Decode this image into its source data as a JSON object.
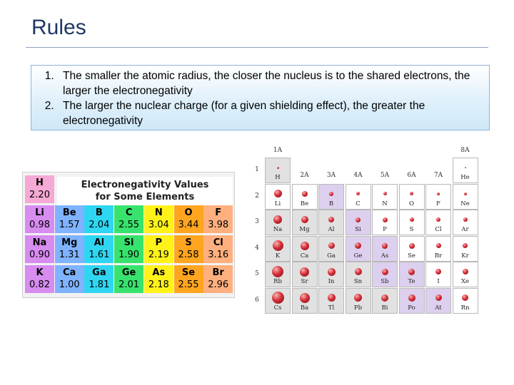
{
  "slide": {
    "title": "Rules",
    "rules": [
      "The smaller the atomic radius, the closer the nucleus is to the shared electrons, the larger the electronegativity",
      "The larger the nuclear charge (for a given shielding effect), the greater the electronegativity"
    ]
  },
  "en_table": {
    "title_line1": "Electronegativity Values",
    "title_line2": "for Some Elements",
    "colors": {
      "s_block_1": "#f29ac8",
      "s_block_2": "#d87ee8",
      "group13": "#2fd4f0",
      "group14": "#36e26b",
      "group15": "#fff21a",
      "group16": "#ffa21f",
      "group17": "#ffb07a",
      "H": "#f29ac8"
    },
    "elements": [
      {
        "symbol": "H",
        "value": "2.20",
        "color": "#f6a9d4",
        "row": 0,
        "col": 0
      },
      {
        "symbol": "Li",
        "value": "0.98",
        "color": "#d78cf0",
        "row": 1,
        "col": 0
      },
      {
        "symbol": "Be",
        "value": "1.57",
        "color": "#7fb3ff",
        "row": 1,
        "col": 1
      },
      {
        "symbol": "B",
        "value": "2.04",
        "color": "#2fd6f2",
        "row": 1,
        "col": 2
      },
      {
        "symbol": "C",
        "value": "2.55",
        "color": "#38e36d",
        "row": 1,
        "col": 3
      },
      {
        "symbol": "N",
        "value": "3.04",
        "color": "#fff21a",
        "row": 1,
        "col": 4
      },
      {
        "symbol": "O",
        "value": "3.44",
        "color": "#ffa51f",
        "row": 1,
        "col": 5
      },
      {
        "symbol": "F",
        "value": "3.98",
        "color": "#ffb07e",
        "row": 1,
        "col": 6
      },
      {
        "symbol": "Na",
        "value": "0.90",
        "color": "#d78cf0",
        "row": 2,
        "col": 0
      },
      {
        "symbol": "Mg",
        "value": "1.31",
        "color": "#7fb3ff",
        "row": 2,
        "col": 1
      },
      {
        "symbol": "Al",
        "value": "1.61",
        "color": "#2fd6f2",
        "row": 2,
        "col": 2
      },
      {
        "symbol": "Si",
        "value": "1.90",
        "color": "#38e36d",
        "row": 2,
        "col": 3
      },
      {
        "symbol": "P",
        "value": "2.19",
        "color": "#fff21a",
        "row": 2,
        "col": 4
      },
      {
        "symbol": "S",
        "value": "2.58",
        "color": "#ffa51f",
        "row": 2,
        "col": 5
      },
      {
        "symbol": "Cl",
        "value": "3.16",
        "color": "#ffb07e",
        "row": 2,
        "col": 6
      },
      {
        "symbol": "K",
        "value": "0.82",
        "color": "#d78cf0",
        "row": 3,
        "col": 0
      },
      {
        "symbol": "Ca",
        "value": "1.00",
        "color": "#7fb3ff",
        "row": 3,
        "col": 1
      },
      {
        "symbol": "Ga",
        "value": "1.81",
        "color": "#2fd6f2",
        "row": 3,
        "col": 2
      },
      {
        "symbol": "Ge",
        "value": "2.01",
        "color": "#38e36d",
        "row": 3,
        "col": 3
      },
      {
        "symbol": "As",
        "value": "2.18",
        "color": "#fff21a",
        "row": 3,
        "col": 4
      },
      {
        "symbol": "Se",
        "value": "2.55",
        "color": "#ffa51f",
        "row": 3,
        "col": 5
      },
      {
        "symbol": "Br",
        "value": "2.96",
        "color": "#ffb07e",
        "row": 3,
        "col": 6
      }
    ]
  },
  "periodic_table": {
    "groups": [
      "1A",
      "2A",
      "3A",
      "4A",
      "5A",
      "6A",
      "7A",
      "8A"
    ],
    "periods": [
      "1",
      "2",
      "3",
      "4",
      "5",
      "6"
    ],
    "ball_color": "#c8242e",
    "cells": [
      {
        "symbol": "H",
        "period": 1,
        "group": 1,
        "size": 0.12,
        "shade": "grey"
      },
      {
        "symbol": "He",
        "period": 1,
        "group": 8,
        "size": 0.1,
        "shade": "white"
      },
      {
        "symbol": "Li",
        "period": 2,
        "group": 1,
        "size": 0.45,
        "shade": "white"
      },
      {
        "symbol": "Be",
        "period": 2,
        "group": 2,
        "size": 0.33,
        "shade": "white"
      },
      {
        "symbol": "B",
        "period": 2,
        "group": 3,
        "size": 0.25,
        "shade": "lilac"
      },
      {
        "symbol": "C",
        "period": 2,
        "group": 4,
        "size": 0.22,
        "shade": "white"
      },
      {
        "symbol": "N",
        "period": 2,
        "group": 5,
        "size": 0.2,
        "shade": "white"
      },
      {
        "symbol": "O",
        "period": 2,
        "group": 6,
        "size": 0.19,
        "shade": "white"
      },
      {
        "symbol": "F",
        "period": 2,
        "group": 7,
        "size": 0.17,
        "shade": "white"
      },
      {
        "symbol": "Ne",
        "period": 2,
        "group": 8,
        "size": 0.15,
        "shade": "white"
      },
      {
        "symbol": "Na",
        "period": 3,
        "group": 1,
        "size": 0.52,
        "shade": "grey"
      },
      {
        "symbol": "Mg",
        "period": 3,
        "group": 2,
        "size": 0.42,
        "shade": "grey"
      },
      {
        "symbol": "Al",
        "period": 3,
        "group": 3,
        "size": 0.35,
        "shade": "grey"
      },
      {
        "symbol": "Si",
        "period": 3,
        "group": 4,
        "size": 0.31,
        "shade": "lilac"
      },
      {
        "symbol": "P",
        "period": 3,
        "group": 5,
        "size": 0.28,
        "shade": "white"
      },
      {
        "symbol": "S",
        "period": 3,
        "group": 6,
        "size": 0.27,
        "shade": "white"
      },
      {
        "symbol": "Cl",
        "period": 3,
        "group": 7,
        "size": 0.25,
        "shade": "white"
      },
      {
        "symbol": "Ar",
        "period": 3,
        "group": 8,
        "size": 0.23,
        "shade": "white"
      },
      {
        "symbol": "K",
        "period": 4,
        "group": 1,
        "size": 0.62,
        "shade": "grey"
      },
      {
        "symbol": "Ca",
        "period": 4,
        "group": 2,
        "size": 0.52,
        "shade": "grey"
      },
      {
        "symbol": "Ga",
        "period": 4,
        "group": 3,
        "size": 0.38,
        "shade": "grey"
      },
      {
        "symbol": "Ge",
        "period": 4,
        "group": 4,
        "size": 0.36,
        "shade": "lilac"
      },
      {
        "symbol": "As",
        "period": 4,
        "group": 5,
        "size": 0.34,
        "shade": "lilac"
      },
      {
        "symbol": "Se",
        "period": 4,
        "group": 6,
        "size": 0.32,
        "shade": "white"
      },
      {
        "symbol": "Br",
        "period": 4,
        "group": 7,
        "size": 0.3,
        "shade": "white"
      },
      {
        "symbol": "Kr",
        "period": 4,
        "group": 8,
        "size": 0.28,
        "shade": "white"
      },
      {
        "symbol": "Rb",
        "period": 5,
        "group": 1,
        "size": 0.66,
        "shade": "grey"
      },
      {
        "symbol": "Sr",
        "period": 5,
        "group": 2,
        "size": 0.56,
        "shade": "grey"
      },
      {
        "symbol": "In",
        "period": 5,
        "group": 3,
        "size": 0.44,
        "shade": "grey"
      },
      {
        "symbol": "Sn",
        "period": 5,
        "group": 4,
        "size": 0.4,
        "shade": "grey"
      },
      {
        "symbol": "Sb",
        "period": 5,
        "group": 5,
        "size": 0.38,
        "shade": "lilac"
      },
      {
        "symbol": "Te",
        "period": 5,
        "group": 6,
        "size": 0.36,
        "shade": "lilac"
      },
      {
        "symbol": "I",
        "period": 5,
        "group": 7,
        "size": 0.34,
        "shade": "white"
      },
      {
        "symbol": "Xe",
        "period": 5,
        "group": 8,
        "size": 0.32,
        "shade": "white"
      },
      {
        "symbol": "Cs",
        "period": 6,
        "group": 1,
        "size": 0.72,
        "shade": "grey"
      },
      {
        "symbol": "Ba",
        "period": 6,
        "group": 2,
        "size": 0.6,
        "shade": "grey"
      },
      {
        "symbol": "Tl",
        "period": 6,
        "group": 3,
        "size": 0.46,
        "shade": "grey"
      },
      {
        "symbol": "Pb",
        "period": 6,
        "group": 4,
        "size": 0.44,
        "shade": "grey"
      },
      {
        "symbol": "Bi",
        "period": 6,
        "group": 5,
        "size": 0.42,
        "shade": "grey"
      },
      {
        "symbol": "Po",
        "period": 6,
        "group": 6,
        "size": 0.4,
        "shade": "lilac"
      },
      {
        "symbol": "At",
        "period": 6,
        "group": 7,
        "size": 0.38,
        "shade": "lilac"
      },
      {
        "symbol": "Rn",
        "period": 6,
        "group": 8,
        "size": 0.36,
        "shade": "white"
      }
    ]
  }
}
